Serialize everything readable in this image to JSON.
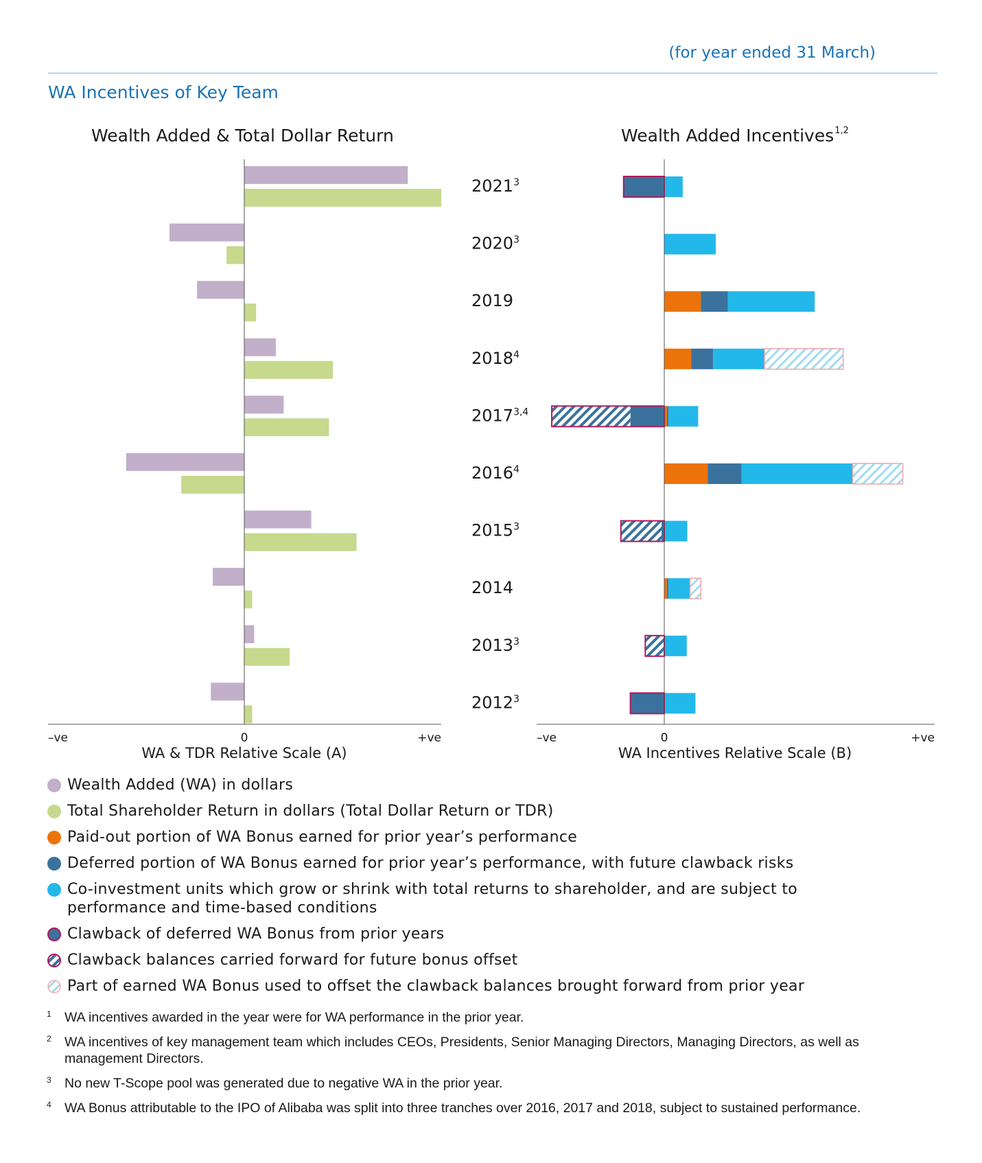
{
  "header": {
    "period": "(for year ended 31 March)",
    "section_title": "WA Incentives of Key Team"
  },
  "colors": {
    "wa": "#c2afca",
    "tdr": "#c6d98d",
    "paid_out": "#ec7309",
    "deferred": "#3a729d",
    "coinvest": "#23b8ea",
    "clawback_border": "#b0185c",
    "offset_border": "#f0a7aa",
    "offset_hatch": "#9fdcf1",
    "axis": "#555555"
  },
  "chart_data": [
    {
      "id": "left",
      "type": "bar",
      "orientation": "horizontal",
      "title": "Wealth Added & Total Dollar Return",
      "xlabel": "WA & TDR Relative Scale (A)",
      "x_ticks": [
        "–ve",
        "0",
        "+ve"
      ],
      "xlim": [
        -1,
        1
      ],
      "categories": [
        "2021³",
        "2020³",
        "2019",
        "2018⁴",
        "2017³,⁴",
        "2016⁴",
        "2015³",
        "2014",
        "2013³",
        "2012³"
      ],
      "series": [
        {
          "name": "Wealth Added (WA) in dollars",
          "values": [
            0.83,
            -0.38,
            -0.24,
            0.16,
            0.2,
            -0.6,
            0.34,
            -0.16,
            0.05,
            -0.17
          ]
        },
        {
          "name": "Total Shareholder Return in dollars (Total Dollar Return or TDR)",
          "values": [
            1.0,
            -0.09,
            0.06,
            0.45,
            0.43,
            -0.32,
            0.57,
            0.04,
            0.23,
            0.04
          ]
        }
      ]
    },
    {
      "id": "right",
      "type": "bar",
      "orientation": "horizontal",
      "stacked": true,
      "title": "Wealth Added Incentives",
      "title_superscript": "1,2",
      "xlabel": "WA Incentives Relative Scale (B)",
      "x_ticks": [
        "–ve",
        "0",
        "+ve"
      ],
      "xlim": [
        -0.47,
        1.0
      ],
      "categories": [
        "2021³",
        "2020³",
        "2019",
        "2018⁴",
        "2017³,⁴",
        "2016⁴",
        "2015³",
        "2014",
        "2013³",
        "2012³"
      ],
      "series": [
        {
          "name": "Paid-out portion of WA Bonus earned for prior year’s performance",
          "values": [
            0,
            0,
            0.135,
            0.1,
            0.01,
            0.16,
            0,
            0.01,
            0,
            0
          ]
        },
        {
          "name": "Deferred portion of WA Bonus earned for prior year’s performance, with future clawback risks",
          "values": [
            0,
            0,
            0.1,
            0.08,
            0.005,
            0.125,
            0,
            0.005,
            0,
            0
          ]
        },
        {
          "name": "Co-investment units which grow or shrink with total returns to shareholder, and are subject to performance and time-based conditions",
          "values": [
            0.068,
            0.19,
            0.32,
            0.19,
            0.11,
            0.41,
            0.085,
            0.08,
            0.083,
            0.115
          ]
        },
        {
          "name": "Part of earned WA Bonus used to offset the clawback balances brought forward from prior year",
          "values": [
            0,
            0,
            0,
            0.29,
            0,
            0.185,
            0,
            0.04,
            0,
            0
          ]
        },
        {
          "name": "Clawback of deferred WA Bonus from prior years",
          "values": [
            -0.15,
            0,
            0,
            0,
            -0.125,
            0,
            -0.01,
            0,
            0,
            -0.125
          ]
        },
        {
          "name": "Clawback balances carried forward for future bonus offset",
          "values": [
            0,
            0,
            0,
            0,
            -0.29,
            0,
            -0.15,
            0,
            -0.07,
            0
          ]
        }
      ]
    }
  ],
  "legend": [
    {
      "icon": "wa",
      "label": "Wealth Added (WA) in dollars"
    },
    {
      "icon": "tdr",
      "label": "Total Shareholder Return in dollars (Total Dollar Return or TDR)"
    },
    {
      "icon": "paid_out",
      "label": "Paid-out portion of WA Bonus earned for prior year’s performance"
    },
    {
      "icon": "deferred",
      "label": "Deferred portion of WA Bonus earned for prior year’s performance, with future clawback risks"
    },
    {
      "icon": "coinvest",
      "label": "Co-investment units which grow or shrink with total returns to shareholder, and are subject to performance and time-based conditions"
    },
    {
      "icon": "clawback",
      "label": "Clawback of deferred WA Bonus from prior years"
    },
    {
      "icon": "clawback_cf",
      "label": "Clawback balances carried forward for future bonus offset"
    },
    {
      "icon": "offset",
      "label": "Part of earned WA Bonus used to offset the clawback balances brought forward from prior year"
    }
  ],
  "footnotes": [
    {
      "num": "1",
      "text": "WA incentives awarded in the year were for WA performance in the prior year."
    },
    {
      "num": "2",
      "text": "WA incentives of key management team which includes CEOs, Presidents, Senior Managing Directors, Managing Directors, as well as management Directors."
    },
    {
      "num": "3",
      "text": "No new T-Scope pool was generated due to negative WA in the prior year."
    },
    {
      "num": "4",
      "text": "WA Bonus attributable to the IPO of Alibaba was split into three tranches over 2016, 2017 and 2018, subject to sustained performance."
    }
  ]
}
